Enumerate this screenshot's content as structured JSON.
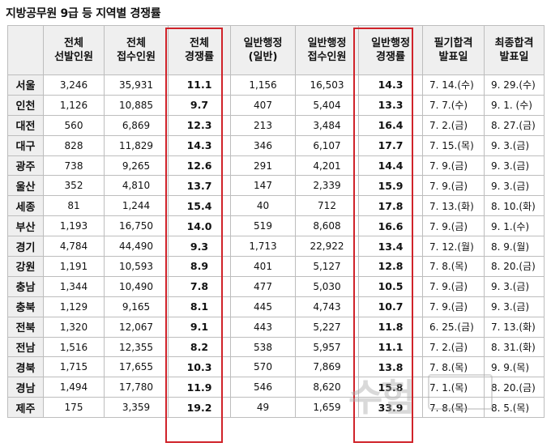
{
  "title": "지방공무원 9급 등 지역별 경쟁률",
  "headers": [
    [
      "",
      ""
    ],
    [
      "전체",
      "선발인원"
    ],
    [
      "전체",
      "접수인원"
    ],
    [
      "전체",
      "경쟁률"
    ],
    [
      "일반행정",
      "(일반)"
    ],
    [
      "일반행정",
      "접수인원"
    ],
    [
      "일반행정",
      "경쟁률"
    ],
    [
      "필기합격",
      "발표일"
    ],
    [
      "최종합격",
      "발표일"
    ]
  ],
  "rows": [
    [
      "서울",
      "3,246",
      "35,931",
      "11.1",
      "1,156",
      "16,503",
      "14.3",
      "7.  14.(수)",
      "9.  29.(수)"
    ],
    [
      "인천",
      "1,126",
      "10,885",
      "9.7",
      "407",
      "5,404",
      "13.3",
      "7.  7.(수)",
      "9.  1.  (수)"
    ],
    [
      "대전",
      "560",
      "6,869",
      "12.3",
      "213",
      "3,484",
      "16.4",
      "7.  2.(금)",
      "8.  27.(금)"
    ],
    [
      "대구",
      "828",
      "11,829",
      "14.3",
      "346",
      "6,107",
      "17.7",
      "7.  15.(목)",
      "9.  3.(금)"
    ],
    [
      "광주",
      "738",
      "9,265",
      "12.6",
      "291",
      "4,201",
      "14.4",
      "7.  9.(금)",
      "9.  3.(금)"
    ],
    [
      "울산",
      "352",
      "4,810",
      "13.7",
      "147",
      "2,339",
      "15.9",
      "7.  9.(금)",
      "9.  3.(금)"
    ],
    [
      "세종",
      "81",
      "1,244",
      "15.4",
      "40",
      "712",
      "17.8",
      "7.  13.(화)",
      "8.  10.(화)"
    ],
    [
      "부산",
      "1,193",
      "16,750",
      "14.0",
      "519",
      "8,608",
      "16.6",
      "7.  9.(금)",
      "9.  1.(수)"
    ],
    [
      "경기",
      "4,784",
      "44,490",
      "9.3",
      "1,713",
      "22,922",
      "13.4",
      "7.  12.(월)",
      "8.  9.(월)"
    ],
    [
      "강원",
      "1,191",
      "10,593",
      "8.9",
      "401",
      "5,127",
      "12.8",
      "7.  8.(목)",
      "8.  20.(금)"
    ],
    [
      "충남",
      "1,344",
      "10,490",
      "7.8",
      "477",
      "5,030",
      "10.5",
      "7.  9.(금)",
      "9.  3.(금)"
    ],
    [
      "충북",
      "1,129",
      "9,165",
      "8.1",
      "445",
      "4,743",
      "10.7",
      "7.  9.(금)",
      "9.  3.(금)"
    ],
    [
      "전북",
      "1,320",
      "12,067",
      "9.1",
      "443",
      "5,227",
      "11.8",
      "6.  25.(금)",
      "7.  13.(화)"
    ],
    [
      "전남",
      "1,516",
      "12,355",
      "8.2",
      "538",
      "5,957",
      "11.1",
      "7.  2.(금)",
      "8.  31.(화)"
    ],
    [
      "경북",
      "1,715",
      "17,655",
      "10.3",
      "570",
      "7,869",
      "13.8",
      "7.  8.(목)",
      "9.  9.(목)"
    ],
    [
      "경남",
      "1,494",
      "17,780",
      "11.9",
      "546",
      "8,620",
      "15.8",
      "7.  1.(목)",
      "8.  20.(금)"
    ],
    [
      "제주",
      "175",
      "3,359",
      "19.2",
      "49",
      "1,659",
      "33.9",
      "7.  8.(목)",
      "8.  5.(목)"
    ]
  ],
  "highlight_color": "#d0232a",
  "watermark": "수험"
}
